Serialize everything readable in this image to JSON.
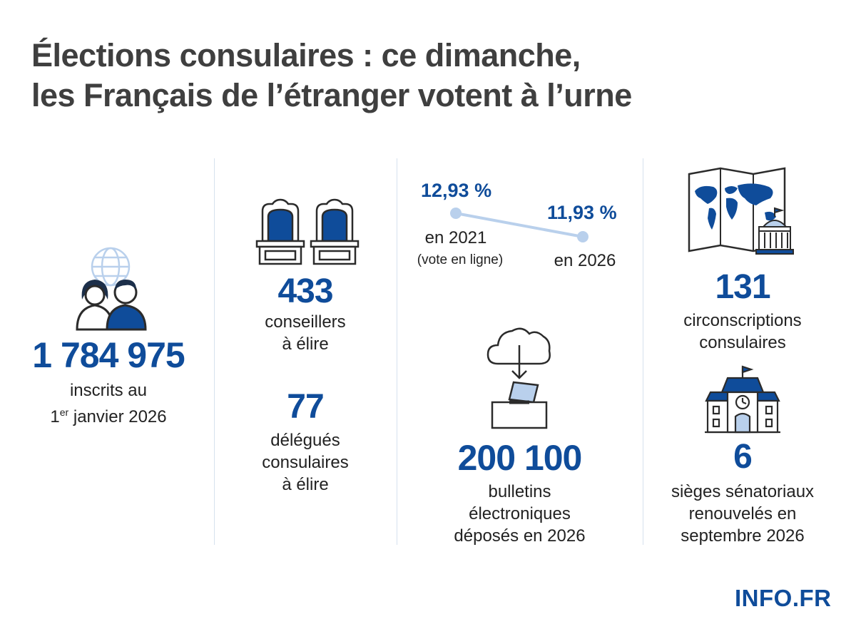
{
  "title": {
    "line1": "Élections consulaires : ce dimanche,",
    "line2": "les Français de l’étranger votent à l’urne"
  },
  "colors": {
    "accent": "#0f4c9a",
    "light_accent": "#b9d0ec",
    "title": "#3f3f3f"
  },
  "voters": {
    "value": "1 784 975",
    "label_line1": "inscrits au",
    "label_line2_prefix": "1",
    "label_line2_sup": "er",
    "label_line2_suffix": " janvier 2026",
    "icons": [
      "globe-icon",
      "people-icon"
    ]
  },
  "councillors": {
    "value": "433",
    "label_line1": "conseillers",
    "label_line2": "à élire",
    "icon": "seats-icon"
  },
  "delegates": {
    "value": "77",
    "label_line1": "délégués",
    "label_line2": "consulaires",
    "label_line3": "à élire"
  },
  "turnout": {
    "left_value": "12,93 %",
    "left_label": "en 2021",
    "left_note": "(vote en ligne)",
    "right_value": "11,93 %",
    "right_label": "en 2026"
  },
  "ballots": {
    "value": "200 100",
    "label_line1": "bulletins",
    "label_line2": "électroniques",
    "label_line3": "déposés en 2026",
    "icons": [
      "cloud-download-icon",
      "ballot-box-icon"
    ]
  },
  "constituencies": {
    "value": "131",
    "label_line1": "circonscriptions",
    "label_line2": "consulaires",
    "icon": "world-map-icon"
  },
  "senate": {
    "value": "6",
    "label_line1": "sièges sénatoriaux",
    "label_line2": "renouvelés en",
    "label_line3": "septembre 2026",
    "icon": "town-hall-icon"
  },
  "brand": "INFO.FR"
}
